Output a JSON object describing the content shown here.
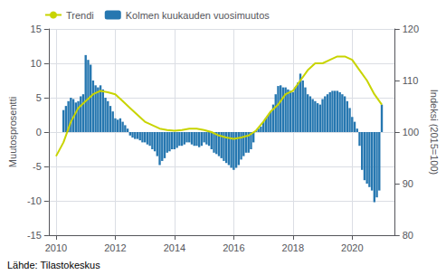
{
  "chart_data": {
    "type": "bar",
    "ylabel": "Muutosprosentti",
    "y2label": "Indeksi (2015=100)",
    "source": "Lähde: Tilastokeskus",
    "xlim": [
      2009.75,
      2021.45
    ],
    "xticks": [
      2010,
      2012,
      2014,
      2016,
      2018,
      2020
    ],
    "ylim": [
      -15,
      15
    ],
    "yticks": [
      -15,
      -10,
      -5,
      0,
      5,
      10,
      15
    ],
    "y2lim": [
      80,
      120
    ],
    "y2ticks": [
      80,
      90,
      100,
      110,
      120
    ],
    "grid": true,
    "legend": "upper left",
    "series": [
      {
        "name": "Trendi",
        "type": "line",
        "color": "#c8d400",
        "x": [
          2010.0,
          2010.25,
          2010.5,
          2010.75,
          2011.0,
          2011.25,
          2011.5,
          2011.75,
          2012.0,
          2012.25,
          2012.5,
          2012.75,
          2013.0,
          2013.25,
          2013.5,
          2013.75,
          2014.0,
          2014.25,
          2014.5,
          2014.75,
          2015.0,
          2015.25,
          2015.5,
          2015.75,
          2016.0,
          2016.25,
          2016.5,
          2016.75,
          2017.0,
          2017.25,
          2017.5,
          2017.75,
          2018.0,
          2018.25,
          2018.5,
          2018.75,
          2019.0,
          2019.25,
          2019.5,
          2019.75,
          2020.0,
          2020.25,
          2020.5,
          2020.75,
          2021.0
        ],
        "values": [
          -3.5,
          -1.5,
          1.5,
          3.5,
          4.5,
          5.5,
          6.0,
          5.8,
          5.5,
          4.5,
          3.5,
          2.5,
          1.5,
          1.0,
          0.5,
          0.3,
          0.2,
          0.3,
          0.5,
          0.5,
          0.3,
          0.0,
          -0.5,
          -0.8,
          -1.0,
          -0.8,
          -0.5,
          0.2,
          1.5,
          3.0,
          4.0,
          5.5,
          6.0,
          7.5,
          9.0,
          10.0,
          10.0,
          10.5,
          11.0,
          11.0,
          10.5,
          9.0,
          7.5,
          5.5,
          4.0
        ]
      },
      {
        "name": "Kolmen kuukauden vuosimuutos",
        "type": "bar",
        "color": "#2677b0",
        "x": [
          2010.25,
          2010.3333333333333,
          2010.4166666666667,
          2010.5,
          2010.5833333333333,
          2010.6666666666667,
          2010.75,
          2010.8333333333333,
          2010.9166666666667,
          2011,
          2011.0833333333333,
          2011.1666666666667,
          2011.25,
          2011.3333333333333,
          2011.4166666666667,
          2011.5,
          2011.5833333333333,
          2011.6666666666667,
          2011.75,
          2011.8333333333333,
          2011.9166666666667,
          2012,
          2012.0833333333333,
          2012.1666666666667,
          2012.25,
          2012.3333333333333,
          2012.4166666666667,
          2012.5,
          2012.5833333333333,
          2012.6666666666667,
          2012.75,
          2012.8333333333333,
          2012.9166666666667,
          2013,
          2013.0833333333333,
          2013.1666666666667,
          2013.25,
          2013.3333333333333,
          2013.4166666666667,
          2013.5,
          2013.5833333333333,
          2013.6666666666667,
          2013.75,
          2013.8333333333333,
          2013.9166666666667,
          2014,
          2014.0833333333333,
          2014.1666666666667,
          2014.25,
          2014.3333333333333,
          2014.4166666666667,
          2014.5,
          2014.5833333333333,
          2014.6666666666667,
          2014.75,
          2014.8333333333333,
          2014.9166666666667,
          2015,
          2015.0833333333333,
          2015.1666666666667,
          2015.25,
          2015.3333333333333,
          2015.4166666666667,
          2015.5,
          2015.5833333333333,
          2015.6666666666667,
          2015.75,
          2015.8333333333333,
          2015.9166666666667,
          2016,
          2016.0833333333333,
          2016.1666666666667,
          2016.25,
          2016.3333333333333,
          2016.4166666666667,
          2016.5,
          2016.5833333333333,
          2016.6666666666667,
          2016.75,
          2016.8333333333333,
          2016.9166666666667,
          2017,
          2017.0833333333333,
          2017.1666666666667,
          2017.25,
          2017.3333333333333,
          2017.4166666666667,
          2017.5,
          2017.5833333333333,
          2017.6666666666667,
          2017.75,
          2017.8333333333333,
          2017.9166666666667,
          2018,
          2018.0833333333333,
          2018.1666666666667,
          2018.25,
          2018.3333333333333,
          2018.4166666666667,
          2018.5,
          2018.5833333333333,
          2018.6666666666667,
          2018.75,
          2018.8333333333333,
          2018.9166666666667,
          2019,
          2019.0833333333333,
          2019.1666666666667,
          2019.25,
          2019.3333333333333,
          2019.4166666666667,
          2019.5,
          2019.5833333333333,
          2019.6666666666667,
          2019.75,
          2019.8333333333333,
          2019.9166666666667,
          2020,
          2020.0833333333333,
          2020.1666666666667,
          2020.25,
          2020.3333333333333,
          2020.4166666666667,
          2020.5,
          2020.5833333333333,
          2020.6666666666667,
          2020.75,
          2020.8333333333333,
          2020.9166666666667,
          2021
        ],
        "values": [
          3.2,
          3.8,
          4.5,
          5.0,
          4.8,
          4.3,
          4.5,
          5.2,
          5.5,
          11.2,
          10.5,
          9.8,
          7.5,
          6.8,
          6.5,
          6.8,
          6.2,
          5.0,
          4.5,
          3.8,
          3.0,
          2.0,
          1.8,
          2.0,
          1.5,
          1.0,
          0.5,
          -0.5,
          -0.8,
          -1.0,
          -1.0,
          -1.2,
          -1.5,
          -1.5,
          -1.8,
          -2.0,
          -2.5,
          -2.8,
          -3.5,
          -4.8,
          -4.2,
          -3.8,
          -3.0,
          -2.8,
          -2.5,
          -2.5,
          -2.3,
          -2.0,
          -2.0,
          -1.8,
          -1.5,
          -1.5,
          -1.8,
          -2.0,
          -2.0,
          -2.2,
          -2.0,
          -1.5,
          -1.8,
          -2.0,
          -2.5,
          -3.0,
          -3.2,
          -3.5,
          -3.8,
          -4.2,
          -4.5,
          -4.8,
          -5.2,
          -5.5,
          -5.2,
          -4.8,
          -4.0,
          -3.5,
          -3.0,
          -3.0,
          -2.5,
          -1.5,
          0.2,
          0.5,
          0.8,
          1.5,
          2.0,
          2.5,
          3.0,
          4.0,
          5.5,
          6.7,
          6.8,
          6.5,
          6.5,
          6.2,
          6.0,
          5.8,
          6.5,
          7.2,
          8.5,
          7.5,
          6.5,
          5.5,
          5.2,
          4.8,
          4.5,
          4.2,
          4.0,
          4.8,
          5.2,
          5.5,
          5.8,
          6.0,
          6.0,
          6.0,
          5.8,
          5.5,
          5.2,
          4.5,
          3.5,
          2.2,
          1.5,
          0.5,
          -2.0,
          -5.5,
          -7.0,
          -7.5,
          -8.0,
          -8.5,
          -10.2,
          -9.5,
          -8.5,
          4.0
        ]
      }
    ]
  }
}
